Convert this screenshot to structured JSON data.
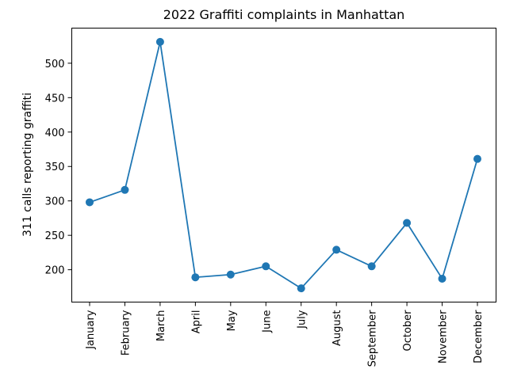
{
  "chart_data": {
    "type": "line",
    "title": "2022 Graffiti complaints in Manhattan",
    "xlabel": "",
    "ylabel": "311 calls reporting graffiti",
    "categories": [
      "January",
      "February",
      "March",
      "April",
      "May",
      "June",
      "July",
      "August",
      "September",
      "October",
      "November",
      "December"
    ],
    "series": [
      {
        "values": [
          298,
          316,
          531,
          189,
          193,
          205,
          173,
          229,
          205,
          268,
          187,
          361
        ],
        "color": "#1f77b4",
        "marker": "circle"
      }
    ],
    "yticks": [
      200,
      250,
      300,
      350,
      400,
      450,
      500
    ],
    "ylim": [
      153,
      551
    ],
    "grid": false,
    "legend": "none"
  }
}
